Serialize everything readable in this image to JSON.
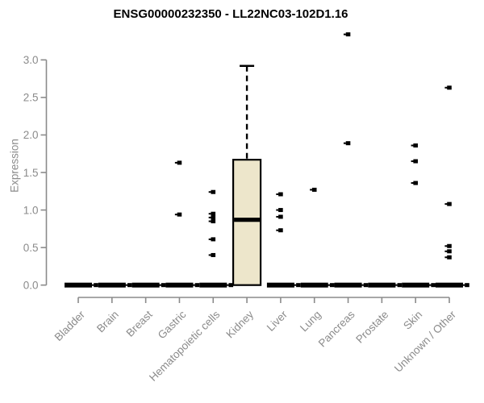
{
  "chart_data": {
    "type": "boxplot",
    "title": "ENSG00000232350 - LL22NC03-102D1.16",
    "ylabel": "Expression",
    "xlabel": "",
    "ylim": [
      0,
      3.35
    ],
    "yticks": [
      "0.0",
      "0.5",
      "1.0",
      "1.5",
      "2.0",
      "2.5",
      "3.0"
    ],
    "grid": "off",
    "legend": "none",
    "categories": [
      "Bladder",
      "Brain",
      "Breast",
      "Gastric",
      "Hematopoietic cells",
      "Kidney",
      "Liver",
      "Lung",
      "Pancreas",
      "Prostate",
      "Skin",
      "Unknown / Other"
    ],
    "boxes": [
      {
        "category": "Bladder",
        "q1": 0,
        "median": 0,
        "q3": 0,
        "whisker_low": 0,
        "whisker_high": 0,
        "outliers": [
          0
        ]
      },
      {
        "category": "Brain",
        "q1": 0,
        "median": 0,
        "q3": 0,
        "whisker_low": 0,
        "whisker_high": 0,
        "outliers": [
          0
        ]
      },
      {
        "category": "Breast",
        "q1": 0,
        "median": 0,
        "q3": 0,
        "whisker_low": 0,
        "whisker_high": 0,
        "outliers": [
          0
        ]
      },
      {
        "category": "Gastric",
        "q1": 0,
        "median": 0,
        "q3": 0,
        "whisker_low": 0,
        "whisker_high": 0,
        "outliers": [
          1.63,
          0.94,
          0
        ]
      },
      {
        "category": "Hematopoietic cells",
        "q1": 0,
        "median": 0,
        "q3": 0,
        "whisker_low": 0,
        "whisker_high": 0,
        "outliers": [
          1.24,
          0.95,
          0.9,
          0.85,
          0.61,
          0.4,
          0
        ]
      },
      {
        "category": "Kidney",
        "q1": 0,
        "median": 0.87,
        "q3": 1.67,
        "whisker_low": 0,
        "whisker_high": 2.92,
        "outliers": []
      },
      {
        "category": "Liver",
        "q1": 0,
        "median": 0,
        "q3": 0,
        "whisker_low": 0,
        "whisker_high": 0,
        "outliers": [
          1.21,
          1.0,
          0.91,
          0.73,
          0
        ]
      },
      {
        "category": "Lung",
        "q1": 0,
        "median": 0,
        "q3": 0,
        "whisker_low": 0,
        "whisker_high": 0,
        "outliers": [
          1.27,
          0
        ]
      },
      {
        "category": "Pancreas",
        "q1": 0,
        "median": 0,
        "q3": 0,
        "whisker_low": 0,
        "whisker_high": 0,
        "outliers": [
          3.34,
          1.89,
          0
        ]
      },
      {
        "category": "Prostate",
        "q1": 0,
        "median": 0,
        "q3": 0,
        "whisker_low": 0,
        "whisker_high": 0,
        "outliers": [
          0
        ]
      },
      {
        "category": "Skin",
        "q1": 0,
        "median": 0,
        "q3": 0,
        "whisker_low": 0,
        "whisker_high": 0,
        "outliers": [
          1.86,
          1.65,
          1.36,
          0
        ]
      },
      {
        "category": "Unknown / Other",
        "q1": 0,
        "median": 0,
        "q3": 0,
        "whisker_low": 0,
        "whisker_high": 0,
        "outliers": [
          2.63,
          1.08,
          0.52,
          0.45,
          0.37,
          0
        ]
      }
    ],
    "colors": {
      "box_fill": "#EDE6CB",
      "box_border": "#000000",
      "median": "#000000",
      "whisker": "#000000",
      "outlier": "#000000",
      "axis": "#8B8B8B",
      "tick_label": "#8B8B8B",
      "title": "#000000",
      "background": "#FFFFFF"
    }
  }
}
